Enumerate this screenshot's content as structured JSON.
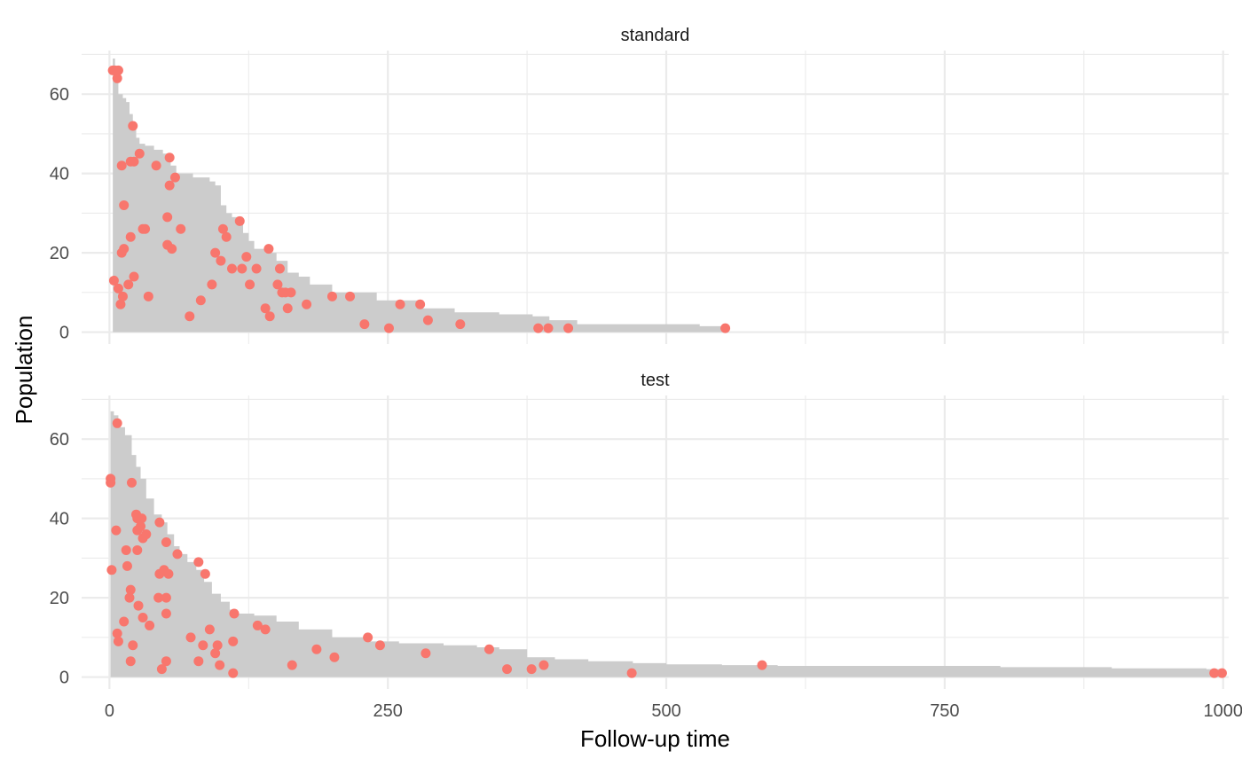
{
  "chart_data": {
    "type": "area",
    "xlabel": "Follow-up time",
    "ylabel": "Population",
    "xlim": [
      -25,
      1005
    ],
    "ylim": [
      -3,
      71
    ],
    "x_ticks": [
      0,
      250,
      500,
      750,
      1000
    ],
    "y_ticks": [
      0,
      20,
      40,
      60
    ],
    "grid": true,
    "colors": {
      "area": "#cccccc",
      "point": "#f8766d",
      "grid": "#ebebeb"
    },
    "panels": [
      {
        "name": "standard",
        "area_curve": [
          [
            3,
            69
          ],
          [
            5,
            66
          ],
          [
            8,
            60
          ],
          [
            12,
            59
          ],
          [
            15,
            58
          ],
          [
            18,
            55
          ],
          [
            21,
            52
          ],
          [
            24,
            49
          ],
          [
            27,
            47.5
          ],
          [
            32,
            47
          ],
          [
            40,
            46
          ],
          [
            48,
            45
          ],
          [
            55,
            42
          ],
          [
            60,
            40
          ],
          [
            75,
            39
          ],
          [
            90,
            38
          ],
          [
            95,
            37
          ],
          [
            100,
            32
          ],
          [
            105,
            30
          ],
          [
            110,
            29
          ],
          [
            115,
            28
          ],
          [
            120,
            25
          ],
          [
            125,
            23
          ],
          [
            130,
            21
          ],
          [
            140,
            20
          ],
          [
            150,
            18
          ],
          [
            160,
            15
          ],
          [
            170,
            14
          ],
          [
            180,
            12
          ],
          [
            200,
            10
          ],
          [
            240,
            8
          ],
          [
            280,
            6
          ],
          [
            310,
            5
          ],
          [
            350,
            4.5
          ],
          [
            380,
            4
          ],
          [
            395,
            3
          ],
          [
            420,
            2
          ],
          [
            530,
            1.5
          ],
          [
            552,
            1
          ]
        ],
        "points": [
          [
            3,
            66
          ],
          [
            5,
            66
          ],
          [
            7,
            64
          ],
          [
            8,
            66
          ],
          [
            21,
            52
          ],
          [
            11,
            42
          ],
          [
            19,
            43
          ],
          [
            22,
            43
          ],
          [
            27,
            45
          ],
          [
            42,
            42
          ],
          [
            54,
            44
          ],
          [
            54,
            37
          ],
          [
            59,
            39
          ],
          [
            13,
            32
          ],
          [
            52,
            29
          ],
          [
            64,
            26
          ],
          [
            19,
            24
          ],
          [
            30,
            26
          ],
          [
            32,
            26
          ],
          [
            52,
            22
          ],
          [
            56,
            21
          ],
          [
            13,
            21
          ],
          [
            11,
            20
          ],
          [
            4,
            13
          ],
          [
            8,
            11
          ],
          [
            12,
            9
          ],
          [
            10,
            7
          ],
          [
            17,
            12
          ],
          [
            22,
            14
          ],
          [
            35,
            9
          ],
          [
            72,
            4
          ],
          [
            82,
            8
          ],
          [
            92,
            12
          ],
          [
            95,
            20
          ],
          [
            100,
            18
          ],
          [
            102,
            26
          ],
          [
            105,
            24
          ],
          [
            110,
            16
          ],
          [
            117,
            28
          ],
          [
            119,
            16
          ],
          [
            123,
            19
          ],
          [
            126,
            12
          ],
          [
            132,
            16
          ],
          [
            140,
            6
          ],
          [
            143,
            21
          ],
          [
            144,
            4
          ],
          [
            151,
            12
          ],
          [
            153,
            16
          ],
          [
            155,
            10
          ],
          [
            158,
            10
          ],
          [
            160,
            6
          ],
          [
            163,
            10
          ],
          [
            177,
            7
          ],
          [
            200,
            9
          ],
          [
            216,
            9
          ],
          [
            229,
            2
          ],
          [
            251,
            1
          ],
          [
            261,
            7
          ],
          [
            279,
            7
          ],
          [
            286,
            3
          ],
          [
            315,
            2
          ],
          [
            385,
            1
          ],
          [
            394,
            1
          ],
          [
            412,
            1
          ],
          [
            553,
            1
          ]
        ]
      },
      {
        "name": "test",
        "area_curve": [
          [
            1,
            67
          ],
          [
            4,
            66
          ],
          [
            8,
            63
          ],
          [
            14,
            61
          ],
          [
            20,
            56
          ],
          [
            24,
            53
          ],
          [
            28,
            50
          ],
          [
            33,
            45
          ],
          [
            40,
            41
          ],
          [
            47,
            39
          ],
          [
            52,
            36
          ],
          [
            58,
            33
          ],
          [
            63,
            31
          ],
          [
            70,
            29
          ],
          [
            78,
            27
          ],
          [
            85,
            24
          ],
          [
            92,
            21
          ],
          [
            100,
            19
          ],
          [
            108,
            17
          ],
          [
            115,
            16
          ],
          [
            130,
            15.5
          ],
          [
            150,
            14
          ],
          [
            170,
            12
          ],
          [
            200,
            10
          ],
          [
            230,
            9
          ],
          [
            260,
            8.5
          ],
          [
            300,
            8
          ],
          [
            330,
            7.5
          ],
          [
            350,
            7
          ],
          [
            375,
            5
          ],
          [
            400,
            4.5
          ],
          [
            430,
            4
          ],
          [
            470,
            3.5
          ],
          [
            500,
            3.2
          ],
          [
            550,
            3
          ],
          [
            600,
            2.8
          ],
          [
            800,
            2.5
          ],
          [
            900,
            2.2
          ],
          [
            985,
            2
          ],
          [
            998,
            1
          ]
        ],
        "points": [
          [
            7,
            64
          ],
          [
            1,
            50
          ],
          [
            1,
            49
          ],
          [
            20,
            49
          ],
          [
            24,
            41
          ],
          [
            25,
            40
          ],
          [
            29,
            40
          ],
          [
            28,
            38
          ],
          [
            25,
            37
          ],
          [
            30,
            35
          ],
          [
            33,
            36
          ],
          [
            6,
            37
          ],
          [
            45,
            39
          ],
          [
            51,
            34
          ],
          [
            61,
            31
          ],
          [
            80,
            29
          ],
          [
            86,
            26
          ],
          [
            15,
            32
          ],
          [
            16,
            28
          ],
          [
            25,
            32
          ],
          [
            19,
            22
          ],
          [
            18,
            20
          ],
          [
            26,
            18
          ],
          [
            30,
            15
          ],
          [
            36,
            13
          ],
          [
            44,
            20
          ],
          [
            45,
            26
          ],
          [
            49,
            27
          ],
          [
            51,
            20
          ],
          [
            53,
            26
          ],
          [
            51,
            16
          ],
          [
            13,
            14
          ],
          [
            7,
            11
          ],
          [
            8,
            9
          ],
          [
            21,
            8
          ],
          [
            19,
            4
          ],
          [
            47,
            2
          ],
          [
            51,
            4
          ],
          [
            73,
            10
          ],
          [
            80,
            4
          ],
          [
            84,
            8
          ],
          [
            90,
            12
          ],
          [
            95,
            6
          ],
          [
            97,
            8
          ],
          [
            99,
            3
          ],
          [
            111,
            9
          ],
          [
            112,
            16
          ],
          [
            111,
            1
          ],
          [
            133,
            13
          ],
          [
            140,
            12
          ],
          [
            164,
            3
          ],
          [
            186,
            7
          ],
          [
            202,
            5
          ],
          [
            232,
            10
          ],
          [
            243,
            8
          ],
          [
            284,
            6
          ],
          [
            341,
            7
          ],
          [
            357,
            2
          ],
          [
            379,
            2
          ],
          [
            390,
            3
          ],
          [
            469,
            1
          ],
          [
            586,
            3
          ],
          [
            992,
            1
          ],
          [
            999,
            1
          ],
          [
            2,
            27
          ]
        ]
      }
    ]
  }
}
